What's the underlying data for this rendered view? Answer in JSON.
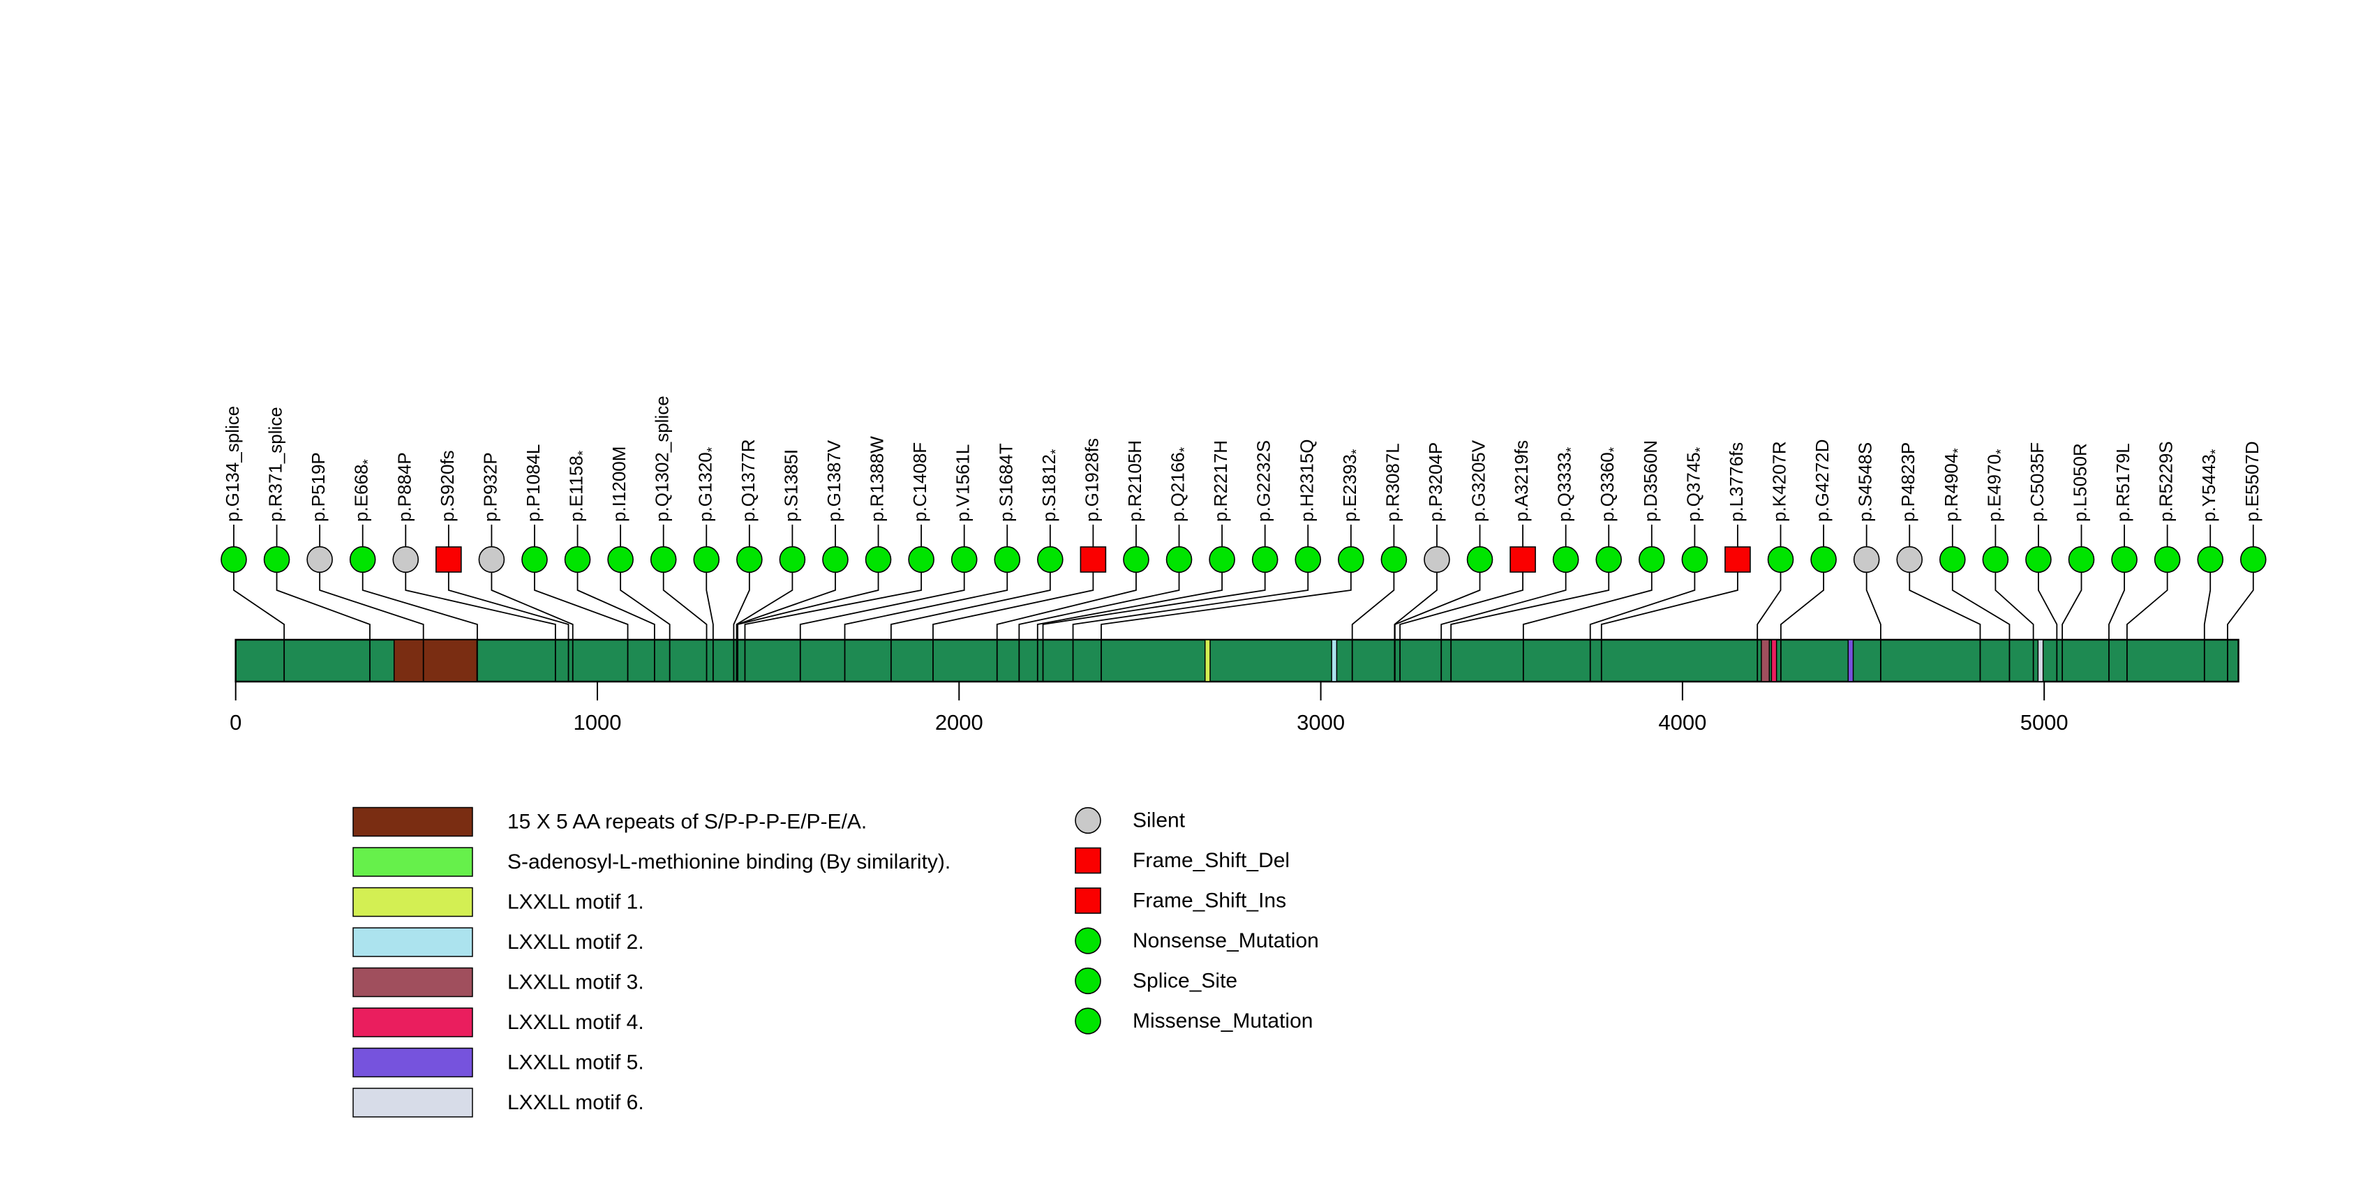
{
  "chart_data": {
    "type": "lollipop",
    "title": "",
    "xlabel": "",
    "description": "Protein mutation lollipop plot with domain track and amino-acid axis",
    "protein_length": 5537,
    "axis_ticks": [
      0,
      1000,
      2000,
      3000,
      4000,
      5000
    ],
    "colors": {
      "background": "#ffffff",
      "protein_bar": "#1e8a52",
      "outline": "#000000",
      "missense_green": "#00e400",
      "silent_gray": "#c9c9c9",
      "frameshift_red": "#fa0000"
    },
    "type_styles": {
      "Silent": {
        "shape": "circle",
        "color": "#c9c9c9"
      },
      "Frame_Shift": {
        "shape": "square",
        "color": "#fa0000"
      },
      "Nonsense_Mutation": {
        "shape": "circle",
        "color": "#00e400"
      },
      "Splice_Site": {
        "shape": "circle",
        "color": "#00e400"
      },
      "Missense_Mutation": {
        "shape": "circle",
        "color": "#00e400"
      }
    },
    "domains": [
      {
        "name": "15 X 5 AA repeats of S/P-P-P-E/P-E/A.",
        "start": 438,
        "end": 667,
        "color": "#7a2d12"
      },
      {
        "name": "LXXLL motif 1.",
        "start": 2680,
        "end": 2694,
        "color": "#d3ef53"
      },
      {
        "name": "LXXLL motif 2.",
        "start": 3030,
        "end": 3044,
        "color": "#ace3ee"
      },
      {
        "name": "LXXLL motif 3.",
        "start": 4218,
        "end": 4240,
        "color": "#a04f5d"
      },
      {
        "name": "LXXLL motif 4.",
        "start": 4246,
        "end": 4260,
        "color": "#ea1e5e"
      },
      {
        "name": "LXXLL motif 5.",
        "start": 4458,
        "end": 4472,
        "color": "#7653dd"
      },
      {
        "name": "LXXLL motif 6.",
        "start": 4983,
        "end": 4997,
        "color": "#d7dce8"
      }
    ],
    "mutations": [
      {
        "label": "p.G134_splice",
        "position": 134,
        "type": "Splice_Site"
      },
      {
        "label": "p.R371_splice",
        "position": 371,
        "type": "Splice_Site"
      },
      {
        "label": "p.P519P",
        "position": 519,
        "type": "Silent"
      },
      {
        "label": "p.E668*",
        "position": 668,
        "type": "Nonsense_Mutation"
      },
      {
        "label": "p.P884P",
        "position": 884,
        "type": "Silent"
      },
      {
        "label": "p.S920fs",
        "position": 920,
        "type": "Frame_Shift"
      },
      {
        "label": "p.P932P",
        "position": 932,
        "type": "Silent"
      },
      {
        "label": "p.P1084L",
        "position": 1084,
        "type": "Missense_Mutation"
      },
      {
        "label": "p.E1158*",
        "position": 1158,
        "type": "Nonsense_Mutation"
      },
      {
        "label": "p.I1200M",
        "position": 1200,
        "type": "Missense_Mutation"
      },
      {
        "label": "p.Q1302_splice",
        "position": 1302,
        "type": "Splice_Site"
      },
      {
        "label": "p.G1320*",
        "position": 1320,
        "type": "Nonsense_Mutation"
      },
      {
        "label": "p.Q1377R",
        "position": 1377,
        "type": "Missense_Mutation"
      },
      {
        "label": "p.S1385I",
        "position": 1385,
        "type": "Missense_Mutation"
      },
      {
        "label": "p.G1387V",
        "position": 1387,
        "type": "Missense_Mutation"
      },
      {
        "label": "p.R1388W",
        "position": 1388,
        "type": "Missense_Mutation"
      },
      {
        "label": "p.C1408F",
        "position": 1408,
        "type": "Missense_Mutation"
      },
      {
        "label": "p.V1561L",
        "position": 1561,
        "type": "Missense_Mutation"
      },
      {
        "label": "p.S1684T",
        "position": 1684,
        "type": "Missense_Mutation"
      },
      {
        "label": "p.S1812*",
        "position": 1812,
        "type": "Nonsense_Mutation"
      },
      {
        "label": "p.G1928fs",
        "position": 1928,
        "type": "Frame_Shift"
      },
      {
        "label": "p.R2105H",
        "position": 2105,
        "type": "Missense_Mutation"
      },
      {
        "label": "p.Q2166*",
        "position": 2166,
        "type": "Nonsense_Mutation"
      },
      {
        "label": "p.R2217H",
        "position": 2217,
        "type": "Missense_Mutation"
      },
      {
        "label": "p.G2232S",
        "position": 2232,
        "type": "Missense_Mutation"
      },
      {
        "label": "p.H2315Q",
        "position": 2315,
        "type": "Missense_Mutation"
      },
      {
        "label": "p.E2393*",
        "position": 2393,
        "type": "Nonsense_Mutation"
      },
      {
        "label": "p.R3087L",
        "position": 3087,
        "type": "Missense_Mutation"
      },
      {
        "label": "p.P3204P",
        "position": 3204,
        "type": "Silent"
      },
      {
        "label": "p.G3205V",
        "position": 3205,
        "type": "Missense_Mutation"
      },
      {
        "label": "p.A3219fs",
        "position": 3219,
        "type": "Frame_Shift"
      },
      {
        "label": "p.Q3333*",
        "position": 3333,
        "type": "Nonsense_Mutation"
      },
      {
        "label": "p.Q3360*",
        "position": 3360,
        "type": "Nonsense_Mutation"
      },
      {
        "label": "p.D3560N",
        "position": 3560,
        "type": "Missense_Mutation"
      },
      {
        "label": "p.Q3745*",
        "position": 3745,
        "type": "Nonsense_Mutation"
      },
      {
        "label": "p.L3776fs",
        "position": 3776,
        "type": "Frame_Shift"
      },
      {
        "label": "p.K4207R",
        "position": 4207,
        "type": "Missense_Mutation"
      },
      {
        "label": "p.G4272D",
        "position": 4272,
        "type": "Missense_Mutation"
      },
      {
        "label": "p.S4548S",
        "position": 4548,
        "type": "Silent"
      },
      {
        "label": "p.P4823P",
        "position": 4823,
        "type": "Silent"
      },
      {
        "label": "p.R4904*",
        "position": 4904,
        "type": "Nonsense_Mutation"
      },
      {
        "label": "p.E4970*",
        "position": 4970,
        "type": "Nonsense_Mutation"
      },
      {
        "label": "p.C5035F",
        "position": 5035,
        "type": "Missense_Mutation"
      },
      {
        "label": "p.L5050R",
        "position": 5050,
        "type": "Missense_Mutation"
      },
      {
        "label": "p.R5179L",
        "position": 5179,
        "type": "Missense_Mutation"
      },
      {
        "label": "p.R5229S",
        "position": 5229,
        "type": "Missense_Mutation"
      },
      {
        "label": "p.Y5443*",
        "position": 5443,
        "type": "Nonsense_Mutation"
      },
      {
        "label": "p.E5507D",
        "position": 5507,
        "type": "Missense_Mutation"
      }
    ],
    "legend": {
      "domains": [
        {
          "label": "15 X 5 AA repeats of S/P-P-P-E/P-E/A.",
          "color": "#7a2d12"
        },
        {
          "label": "S-adenosyl-L-methionine binding (By similarity).",
          "color": "#66f04b"
        },
        {
          "label": "LXXLL motif 1.",
          "color": "#d3ef53"
        },
        {
          "label": "LXXLL motif 2.",
          "color": "#ace3ee"
        },
        {
          "label": "LXXLL motif 3.",
          "color": "#a04f5d"
        },
        {
          "label": "LXXLL motif 4.",
          "color": "#ea1e5e"
        },
        {
          "label": "LXXLL motif 5.",
          "color": "#7653dd"
        },
        {
          "label": "LXXLL motif 6.",
          "color": "#d7dce8"
        }
      ],
      "mutation_types": [
        {
          "label": "Silent",
          "shape": "circle",
          "color": "#c9c9c9"
        },
        {
          "label": "Frame_Shift_Del",
          "shape": "square",
          "color": "#fa0000"
        },
        {
          "label": "Frame_Shift_Ins",
          "shape": "square",
          "color": "#fa0000"
        },
        {
          "label": "Nonsense_Mutation",
          "shape": "circle",
          "color": "#00e400"
        },
        {
          "label": "Splice_Site",
          "shape": "circle",
          "color": "#00e400"
        },
        {
          "label": "Missense_Mutation",
          "shape": "circle",
          "color": "#00e400"
        }
      ]
    },
    "layout_hints": {
      "grid": false,
      "legend_position": "bottom",
      "label_rotation": 90
    }
  }
}
